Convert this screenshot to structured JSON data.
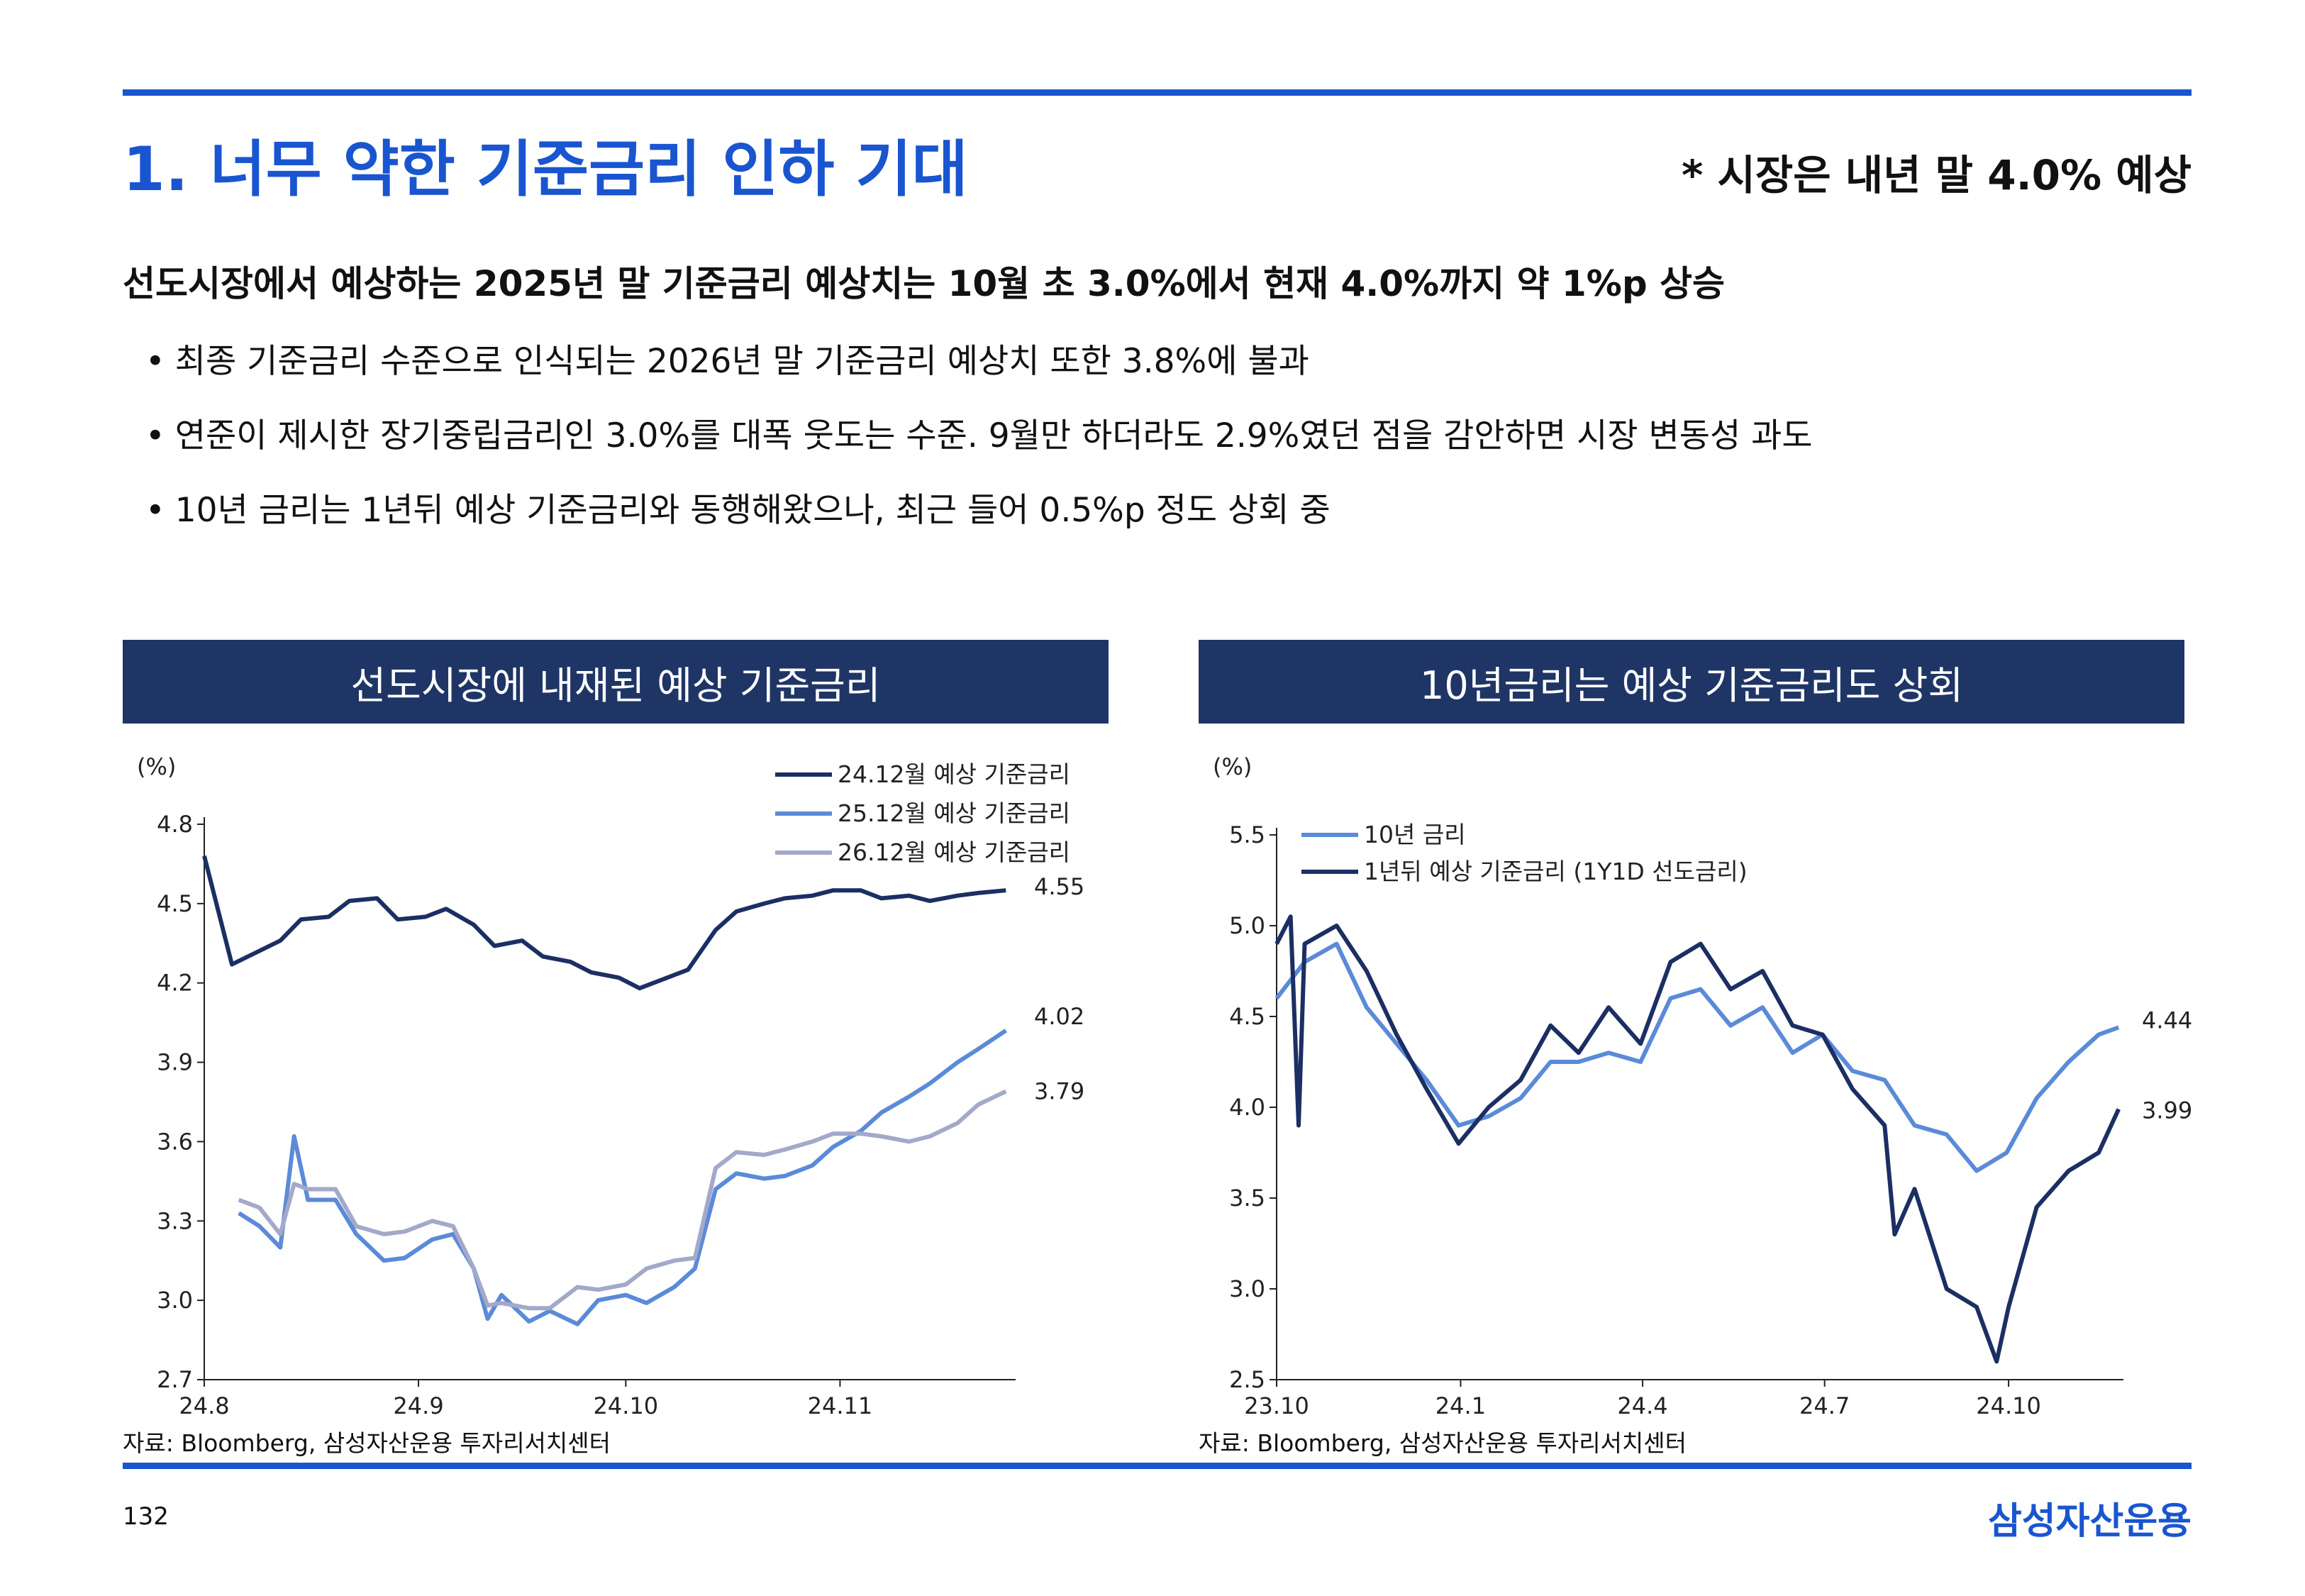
{
  "header": {
    "title": "1. 너무 약한 기준금리 인하 기대",
    "note": "* 시장은 내년 말 4.0% 예상"
  },
  "summary": {
    "headline": "선도시장에서 예상하는 2025년 말 기준금리 예상치는 10월 초 3.0%에서 현재 4.0%까지 약 1%p 상승",
    "bullet_mark": "•",
    "bullets": [
      "최종 기준금리 수준으로 인식되는 2026년 말 기준금리 예상치 또한 3.8%에 불과",
      "연준이 제시한 장기중립금리인 3.0%를 대폭 웃도는 수준. 9월만 하더라도 2.9%였던 점을 감안하면 시장 변동성 과도",
      "10년 금리는 1년뒤 예상 기준금리와 동행해왔으나, 최근 들어 0.5%p 정도 상회 중"
    ]
  },
  "panels": {
    "left_title": "선도시장에 내재된 예상 기준금리",
    "right_title": "10년금리는 예상 기준금리도 상회",
    "source": "자료: Bloomberg, 삼성자산운용 투자리서치센터"
  },
  "footer": {
    "page": "132",
    "brand": "삼성자산운용"
  },
  "colors": {
    "accent": "#1a55d0",
    "navy": "#1f3566",
    "dark_series": "#1b2f63",
    "light_series": "#5b8ad8",
    "gray_series": "#a3a9c9"
  },
  "chart_data": [
    {
      "type": "line",
      "title": "선도시장에 내재된 예상 기준금리",
      "ylabel": "(%)",
      "xlabel": "",
      "ylim": [
        2.7,
        4.8
      ],
      "yticks": [
        "4.8",
        "4.5",
        "4.2",
        "3.9",
        "3.6",
        "3.3",
        "3.0",
        "2.7"
      ],
      "xticks": [
        "24.8",
        "24.9",
        "24.10",
        "24.11"
      ],
      "legend": "top-right",
      "grid": false,
      "series": [
        {
          "name": "24.12월 예상 기준금리",
          "color": "#1b2f63",
          "end_label": "4.55",
          "x": [
            "24.8.1",
            "24.8.5",
            "24.8.12",
            "24.8.15",
            "24.8.19",
            "24.8.22",
            "24.8.26",
            "24.8.29",
            "24.9.2",
            "24.9.5",
            "24.9.9",
            "24.9.12",
            "24.9.16",
            "24.9.19",
            "24.9.23",
            "24.9.26",
            "24.9.30",
            "24.10.3",
            "24.10.7",
            "24.10.10",
            "24.10.14",
            "24.10.17",
            "24.10.21",
            "24.10.24",
            "24.10.28",
            "24.10.31",
            "24.11.4",
            "24.11.7",
            "24.11.11",
            "24.11.14",
            "24.11.18",
            "24.11.21",
            "24.11.25"
          ],
          "values": [
            4.68,
            4.27,
            4.36,
            4.44,
            4.45,
            4.51,
            4.52,
            4.44,
            4.45,
            4.48,
            4.42,
            4.34,
            4.36,
            4.3,
            4.28,
            4.24,
            4.22,
            4.18,
            4.22,
            4.25,
            4.4,
            4.47,
            4.5,
            4.52,
            4.53,
            4.55,
            4.55,
            4.52,
            4.53,
            4.51,
            4.53,
            4.54,
            4.55
          ]
        },
        {
          "name": "25.12월 예상 기준금리",
          "color": "#5b8ad8",
          "end_label": "4.02",
          "x": [
            "24.8.6",
            "24.8.9",
            "24.8.12",
            "24.8.14",
            "24.8.16",
            "24.8.20",
            "24.8.23",
            "24.8.27",
            "24.8.30",
            "24.9.3",
            "24.9.6",
            "24.9.9",
            "24.9.11",
            "24.9.13",
            "24.9.17",
            "24.9.20",
            "24.9.24",
            "24.9.27",
            "24.10.1",
            "24.10.4",
            "24.10.8",
            "24.10.11",
            "24.10.14",
            "24.10.17",
            "24.10.21",
            "24.10.24",
            "24.10.28",
            "24.10.31",
            "24.11.4",
            "24.11.7",
            "24.11.11",
            "24.11.14",
            "24.11.18",
            "24.11.21",
            "24.11.25"
          ],
          "values": [
            3.33,
            3.28,
            3.2,
            3.62,
            3.38,
            3.38,
            3.25,
            3.15,
            3.16,
            3.23,
            3.25,
            3.12,
            2.93,
            3.02,
            2.92,
            2.96,
            2.91,
            3.0,
            3.02,
            2.99,
            3.05,
            3.12,
            3.42,
            3.48,
            3.46,
            3.47,
            3.51,
            3.58,
            3.64,
            3.71,
            3.77,
            3.82,
            3.9,
            3.95,
            4.02
          ]
        },
        {
          "name": "26.12월 예상 기준금리",
          "color": "#a3a9c9",
          "end_label": "3.79",
          "x": [
            "24.8.6",
            "24.8.9",
            "24.8.12",
            "24.8.14",
            "24.8.16",
            "24.8.20",
            "24.8.23",
            "24.8.27",
            "24.8.30",
            "24.9.3",
            "24.9.6",
            "24.9.9",
            "24.9.11",
            "24.9.13",
            "24.9.17",
            "24.9.20",
            "24.9.24",
            "24.9.27",
            "24.10.1",
            "24.10.4",
            "24.10.8",
            "24.10.11",
            "24.10.14",
            "24.10.17",
            "24.10.21",
            "24.10.24",
            "24.10.28",
            "24.10.31",
            "24.11.4",
            "24.11.7",
            "24.11.11",
            "24.11.14",
            "24.11.18",
            "24.11.21",
            "24.11.25"
          ],
          "values": [
            3.38,
            3.35,
            3.25,
            3.44,
            3.42,
            3.42,
            3.28,
            3.25,
            3.26,
            3.3,
            3.28,
            3.12,
            2.98,
            2.99,
            2.97,
            2.97,
            3.05,
            3.04,
            3.06,
            3.12,
            3.15,
            3.16,
            3.5,
            3.56,
            3.55,
            3.57,
            3.6,
            3.63,
            3.63,
            3.62,
            3.6,
            3.62,
            3.67,
            3.74,
            3.79
          ]
        }
      ]
    },
    {
      "type": "line",
      "title": "10년금리는 예상 기준금리도 상회",
      "ylabel": "(%)",
      "xlabel": "",
      "ylim": [
        2.5,
        5.5
      ],
      "yticks": [
        "5.5",
        "5.0",
        "4.5",
        "4.0",
        "3.5",
        "3.0",
        "2.5"
      ],
      "xticks": [
        "23.10",
        "24.1",
        "24.4",
        "24.7",
        "24.10"
      ],
      "legend": "top-left",
      "grid": false,
      "series": [
        {
          "name": "10년 금리",
          "color": "#5b8ad8",
          "end_label": "4.44",
          "x": [
            "23.10.1",
            "23.10.15",
            "23.10.31",
            "23.11.15",
            "23.11.30",
            "23.12.15",
            "23.12.31",
            "24.1.15",
            "24.1.31",
            "24.2.15",
            "24.2.29",
            "24.3.15",
            "24.3.31",
            "24.4.15",
            "24.4.30",
            "24.5.15",
            "24.5.31",
            "24.6.15",
            "24.6.30",
            "24.7.15",
            "24.7.31",
            "24.8.15",
            "24.8.31",
            "24.9.15",
            "24.9.30",
            "24.10.15",
            "24.10.31",
            "24.11.15",
            "24.11.25"
          ],
          "values": [
            4.6,
            4.8,
            4.9,
            4.55,
            4.35,
            4.15,
            3.9,
            3.95,
            4.05,
            4.25,
            4.25,
            4.3,
            4.25,
            4.6,
            4.65,
            4.45,
            4.55,
            4.3,
            4.4,
            4.2,
            4.15,
            3.9,
            3.85,
            3.65,
            3.75,
            4.05,
            4.25,
            4.4,
            4.44
          ]
        },
        {
          "name": "1년뒤 예상 기준금리 (1Y1D 선도금리)",
          "color": "#1b2f63",
          "end_label": "3.99",
          "x": [
            "23.10.1",
            "23.10.8",
            "23.10.12",
            "23.10.15",
            "23.10.31",
            "23.11.15",
            "23.11.30",
            "23.12.15",
            "23.12.31",
            "24.1.15",
            "24.1.31",
            "24.2.15",
            "24.2.29",
            "24.3.15",
            "24.3.31",
            "24.4.15",
            "24.4.30",
            "24.5.15",
            "24.5.31",
            "24.6.15",
            "24.6.30",
            "24.7.15",
            "24.7.31",
            "24.8.5",
            "24.8.15",
            "24.8.31",
            "24.9.15",
            "24.9.25",
            "24.10.1",
            "24.10.15",
            "24.10.31",
            "24.11.15",
            "24.11.25"
          ],
          "values": [
            4.9,
            5.05,
            3.9,
            4.9,
            5.0,
            4.75,
            4.4,
            4.1,
            3.8,
            4.0,
            4.15,
            4.45,
            4.3,
            4.55,
            4.35,
            4.8,
            4.9,
            4.65,
            4.75,
            4.45,
            4.4,
            4.1,
            3.9,
            3.3,
            3.55,
            3.0,
            2.9,
            2.6,
            2.9,
            3.45,
            3.65,
            3.75,
            3.99
          ]
        }
      ]
    }
  ]
}
